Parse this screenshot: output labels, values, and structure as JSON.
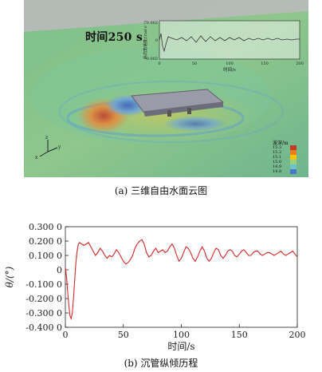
{
  "panel_a": {
    "caption": "(a) 三维自由水面云图",
    "time_label": "时间250 s",
    "inset": {
      "ylabel": "纵向角速度/(rad·s⁻¹)",
      "xlabel": "时间/s",
      "x_ticks": [
        "0",
        "50",
        "100",
        "150",
        "200"
      ],
      "y_ticks": [
        "0.002",
        "0",
        "-0.002"
      ]
    },
    "legend": {
      "title": "波深/m",
      "values": [
        "15.3",
        "15.2",
        "15.1",
        "15.0",
        "14.9",
        "14.8"
      ],
      "colors": [
        "#c0392b",
        "#e67e22",
        "#f1c40f",
        "#9bd17a",
        "#6fc3c9",
        "#4a78c8"
      ]
    },
    "axis_triad": [
      "x",
      "y",
      "z"
    ]
  },
  "panel_b": {
    "caption": "(b) 沉管纵倾历程",
    "chart_data": {
      "type": "line",
      "title": "",
      "xlabel": "时间/s",
      "ylabel": "θ/(°)",
      "xlim": [
        0,
        200
      ],
      "ylim": [
        -0.4,
        0.3
      ],
      "x_ticks": [
        "0",
        "50",
        "100",
        "150",
        "200"
      ],
      "y_ticks": [
        "0.300 0",
        "0.200 0",
        "0.100 0",
        "0",
        "-0.100 0",
        "-0.200 0",
        "-0.300 0",
        "-0.400 0"
      ],
      "grid": false,
      "series": [
        {
          "color": "#d62728",
          "x": [
            0,
            1,
            2,
            3,
            4,
            5,
            6,
            7,
            8,
            9,
            10,
            11,
            12,
            14,
            16,
            18,
            20,
            22,
            24,
            26,
            28,
            30,
            32,
            34,
            36,
            38,
            40,
            42,
            44,
            46,
            48,
            50,
            52,
            54,
            56,
            58,
            60,
            62,
            64,
            66,
            68,
            70,
            72,
            74,
            76,
            78,
            80,
            82,
            84,
            86,
            88,
            90,
            92,
            94,
            96,
            98,
            100,
            102,
            104,
            106,
            108,
            110,
            112,
            114,
            116,
            118,
            120,
            122,
            124,
            126,
            128,
            130,
            132,
            134,
            136,
            138,
            140,
            142,
            144,
            146,
            148,
            150,
            152,
            154,
            156,
            158,
            160,
            162,
            164,
            166,
            168,
            170,
            172,
            174,
            176,
            178,
            180,
            182,
            184,
            186,
            188,
            190,
            192,
            194,
            196,
            198,
            200
          ],
          "y": [
            0.02,
            -0.05,
            -0.15,
            -0.25,
            -0.32,
            -0.34,
            -0.3,
            -0.2,
            -0.08,
            0.04,
            0.12,
            0.17,
            0.19,
            0.18,
            0.17,
            0.18,
            0.19,
            0.16,
            0.13,
            0.1,
            0.12,
            0.15,
            0.13,
            0.1,
            0.08,
            0.1,
            0.09,
            0.11,
            0.14,
            0.12,
            0.09,
            0.06,
            0.04,
            0.05,
            0.07,
            0.1,
            0.15,
            0.18,
            0.2,
            0.21,
            0.18,
            0.12,
            0.09,
            0.1,
            0.13,
            0.15,
            0.12,
            0.13,
            0.14,
            0.12,
            0.13,
            0.16,
            0.18,
            0.15,
            0.1,
            0.06,
            0.08,
            0.12,
            0.16,
            0.15,
            0.12,
            0.08,
            0.06,
            0.09,
            0.13,
            0.16,
            0.13,
            0.08,
            0.06,
            0.08,
            0.12,
            0.15,
            0.14,
            0.1,
            0.08,
            0.1,
            0.13,
            0.14,
            0.13,
            0.1,
            0.09,
            0.11,
            0.13,
            0.14,
            0.12,
            0.1,
            0.1,
            0.12,
            0.13,
            0.13,
            0.11,
            0.1,
            0.11,
            0.12,
            0.12,
            0.11,
            0.1,
            0.11,
            0.12,
            0.13,
            0.11,
            0.1,
            0.11,
            0.12,
            0.13,
            0.11,
            0.09
          ]
        }
      ]
    }
  }
}
